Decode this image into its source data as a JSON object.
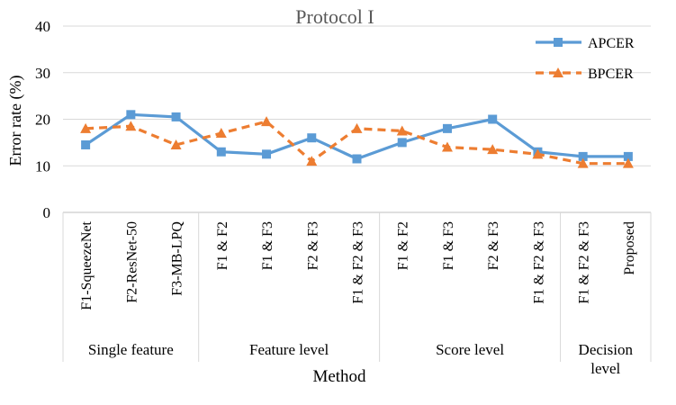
{
  "chart_data": {
    "type": "line",
    "title": "Protocol I",
    "xlabel": "Method",
    "ylabel": "Error rate (%)",
    "ylim": [
      0,
      40
    ],
    "yticks": [
      0,
      10,
      20,
      30,
      40
    ],
    "grid": true,
    "legend_position": "top-right",
    "categories": [
      "F1-SqueezeNet",
      "F2-ResNet-50",
      "F3-MB-LPQ",
      "F1 & F2",
      "F1 & F3",
      "F2 & F3",
      "F1 & F2 & F3",
      "F1 & F2",
      "F1 & F3",
      "F2 & F3",
      "F1 & F2 & F3",
      "F1 & F2 & F3",
      "Proposed"
    ],
    "groups": [
      {
        "label": "Single feature",
        "start": 0,
        "end": 2
      },
      {
        "label": "Feature level",
        "start": 3,
        "end": 6
      },
      {
        "label": "Score level",
        "start": 7,
        "end": 10
      },
      {
        "label": "Decision level",
        "start": 11,
        "end": 12
      }
    ],
    "series": [
      {
        "name": "APCER",
        "color": "#5B9BD5",
        "marker": "square",
        "dash": "solid",
        "values": [
          14.5,
          21.0,
          20.5,
          13.0,
          12.5,
          16.0,
          11.5,
          15.0,
          18.0,
          20.0,
          13.0,
          12.0,
          12.0
        ]
      },
      {
        "name": "BPCER",
        "color": "#ED7D31",
        "marker": "triangle",
        "dash": "dashed",
        "values": [
          18.0,
          18.5,
          14.5,
          17.0,
          19.5,
          11.0,
          18.0,
          17.5,
          14.0,
          13.5,
          12.5,
          10.5,
          10.5
        ]
      }
    ]
  }
}
